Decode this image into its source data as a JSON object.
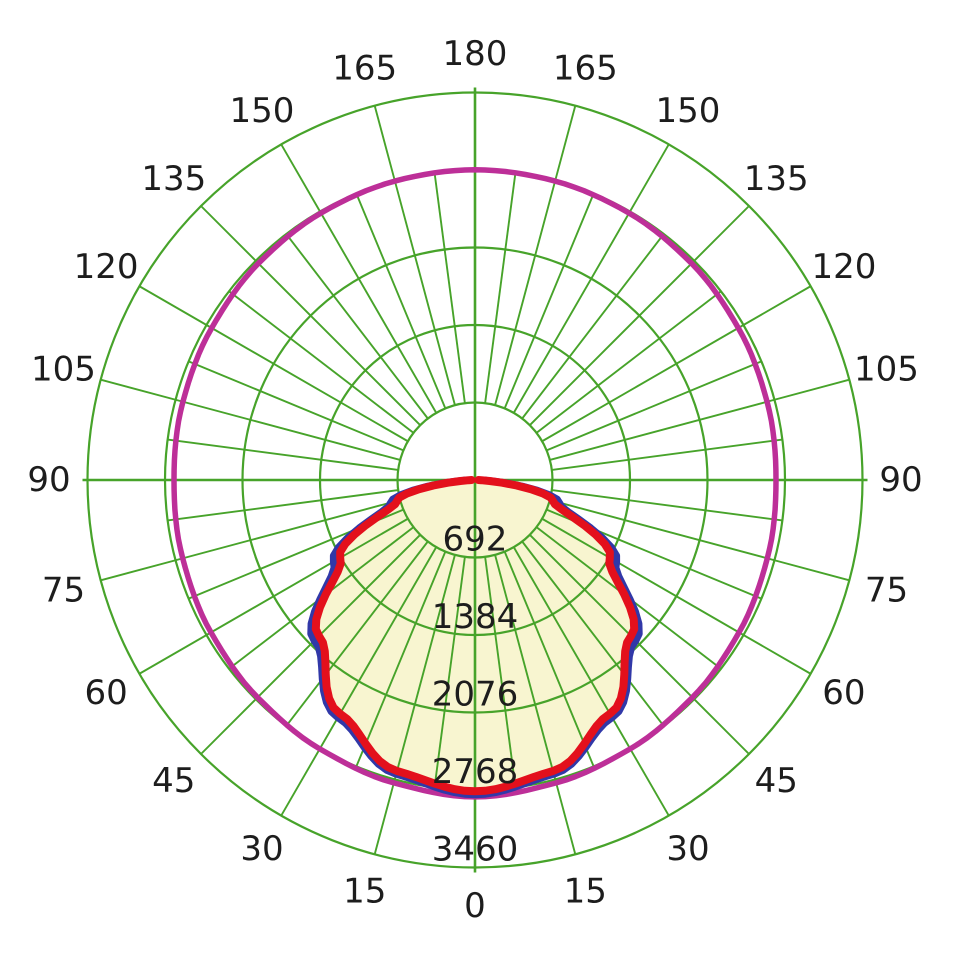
{
  "chart_data": {
    "type": "polar_line",
    "title": "",
    "description": "Photometric polar luminous-intensity diagram; 0 deg at bottom, 180 deg at top, angle labels mirrored on both sides",
    "angle_unit": "degrees",
    "angle_tick_labels": [
      "0",
      "15",
      "30",
      "45",
      "60",
      "75",
      "90",
      "105",
      "120",
      "135",
      "150",
      "165",
      "180"
    ],
    "angle_ticks_deg": [
      0,
      15,
      30,
      45,
      60,
      75,
      90,
      105,
      120,
      135,
      150,
      165,
      180
    ],
    "radial_tick_labels": [
      "692",
      "1384",
      "2076",
      "2768",
      "3460"
    ],
    "radial_ticks": [
      692,
      1384,
      2076,
      2768,
      3460
    ],
    "radial_max": 3460,
    "grid": {
      "color": "#47a32a",
      "spoke_step_inner_deg": 7.5,
      "spoke_step_outer_deg": 15,
      "rings": 5
    },
    "series": [
      {
        "name": "red-curve",
        "color": "#e3101c",
        "fill": "#f8f5d0",
        "angles": [
          -90,
          -75,
          -60,
          -45,
          -30,
          -15,
          0,
          15,
          30,
          45,
          60,
          75,
          90
        ],
        "values": [
          30,
          720,
          1390,
          1970,
          2410,
          2690,
          2780,
          2690,
          2410,
          1970,
          1390,
          720,
          30
        ]
      },
      {
        "name": "blue-curve",
        "color": "#3138a8",
        "fill": null,
        "angles": [
          -90,
          -75,
          -60,
          -45,
          -30,
          -15,
          0,
          15,
          30,
          45,
          60,
          75,
          90
        ],
        "values": [
          80,
          780,
          1460,
          2030,
          2450,
          2720,
          2810,
          2720,
          2450,
          2030,
          1460,
          780,
          80
        ]
      },
      {
        "name": "magenta-circle",
        "color": "#bd2f98",
        "fill": null,
        "closed": true,
        "angles": [
          -180,
          -165,
          -150,
          -135,
          -120,
          -105,
          -90,
          -75,
          -60,
          -45,
          -30,
          -15,
          0,
          15,
          30,
          45,
          60,
          75,
          90,
          105,
          120,
          135,
          150,
          165,
          180
        ],
        "values": [
          2770,
          2763,
          2752,
          2735,
          2715,
          2700,
          2688,
          2702,
          2722,
          2745,
          2772,
          2800,
          2830,
          2800,
          2772,
          2745,
          2722,
          2702,
          2688,
          2700,
          2715,
          2735,
          2752,
          2763,
          2770
        ]
      }
    ],
    "text_color": "#1d1d1d",
    "background_color": "#ffffff"
  }
}
